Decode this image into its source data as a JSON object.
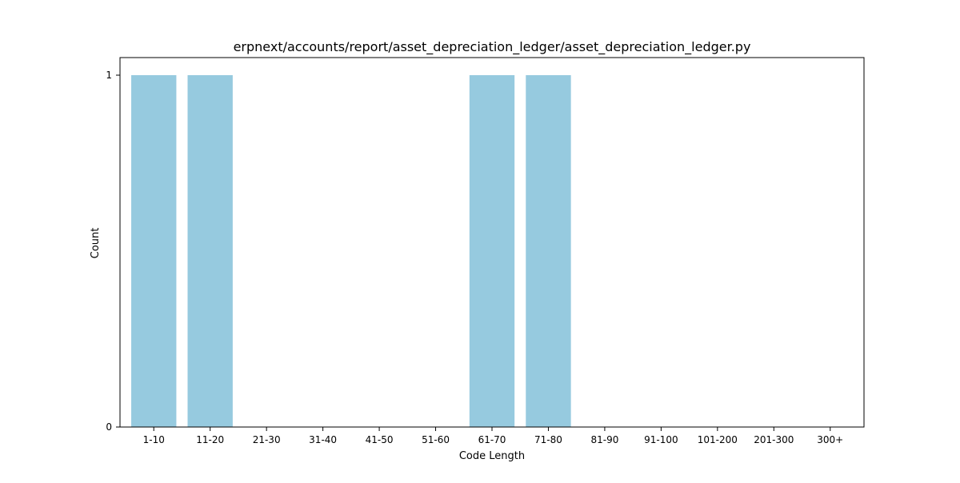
{
  "chart_data": {
    "type": "bar",
    "title": "erpnext/accounts/report/asset_depreciation_ledger/asset_depreciation_ledger.py",
    "xlabel": "Code Length",
    "ylabel": "Count",
    "categories": [
      "1-10",
      "11-20",
      "21-30",
      "31-40",
      "41-50",
      "51-60",
      "61-70",
      "71-80",
      "81-90",
      "91-100",
      "101-200",
      "201-300",
      "300+"
    ],
    "values": [
      1,
      1,
      0,
      0,
      0,
      0,
      1,
      1,
      0,
      0,
      0,
      0,
      0
    ],
    "ylim": [
      0,
      1.05
    ],
    "yticks": [
      0,
      1
    ],
    "bar_color": "#96cadf",
    "grid": false,
    "legend": "none"
  }
}
